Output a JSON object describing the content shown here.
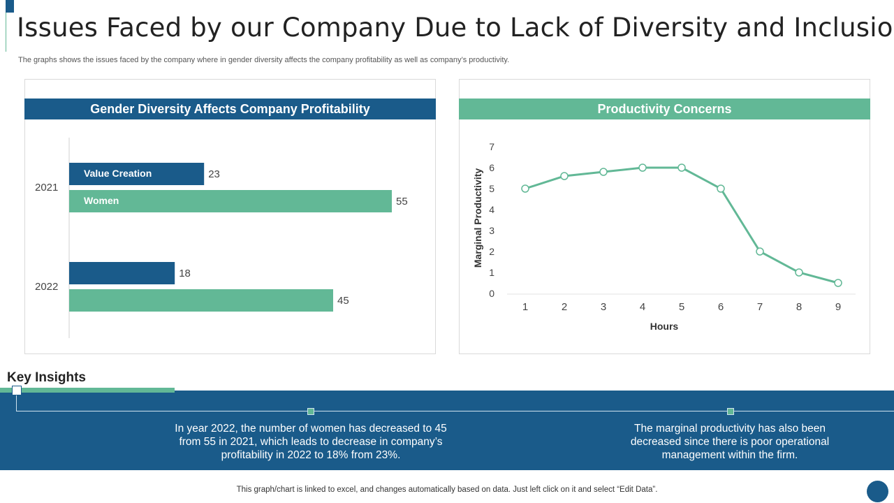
{
  "title": "Issues Faced by our Company Due to Lack of Diversity and Inclusion",
  "subtitle": "The graphs shows the issues faced by the company where in gender diversity affects the company profitability as well as company’s productivity.",
  "colors": {
    "navy": "#1a5b8a",
    "green": "#62b896"
  },
  "left_panel": {
    "header": "Gender Diversity Affects Company Profitability"
  },
  "right_panel": {
    "header": "Productivity Concerns"
  },
  "chart_data": [
    {
      "type": "bar",
      "orientation": "horizontal",
      "title": "Gender Diversity Affects Company Profitability",
      "categories": [
        "2021",
        "2022"
      ],
      "series": [
        {
          "name": "Value Creation",
          "values": [
            23,
            18
          ]
        },
        {
          "name": "Women",
          "values": [
            55,
            45
          ]
        }
      ],
      "series_labels": [
        "Value Creation",
        "Women"
      ],
      "xlim": [
        0,
        70
      ]
    },
    {
      "type": "line",
      "title": "Productivity Concerns",
      "x": [
        1,
        2,
        3,
        4,
        5,
        6,
        7,
        8,
        9
      ],
      "y": [
        5,
        5.6,
        5.8,
        6,
        6,
        5,
        2,
        1,
        0.5
      ],
      "xlabel": "Hours",
      "ylabel": "Marginal Productivity",
      "ylim": [
        0,
        7
      ],
      "yticks": [
        "0",
        "1",
        "2",
        "3",
        "4",
        "5",
        "6",
        "7"
      ],
      "xticks": [
        "1",
        "2",
        "3",
        "4",
        "5",
        "6",
        "7",
        "8",
        "9"
      ]
    }
  ],
  "key_insights": {
    "title": "Key Insights",
    "items": [
      "In year 2022, the number of women has decreased to 45 from 55 in 2021, which leads to decrease in company’s profitability in 2022 to 18% from 23%.",
      "The marginal productivity has also been decreased since there is poor operational management within the firm."
    ]
  },
  "footer": "This graph/chart is linked to excel, and changes automatically based on data. Just left click on it and select “Edit Data”."
}
